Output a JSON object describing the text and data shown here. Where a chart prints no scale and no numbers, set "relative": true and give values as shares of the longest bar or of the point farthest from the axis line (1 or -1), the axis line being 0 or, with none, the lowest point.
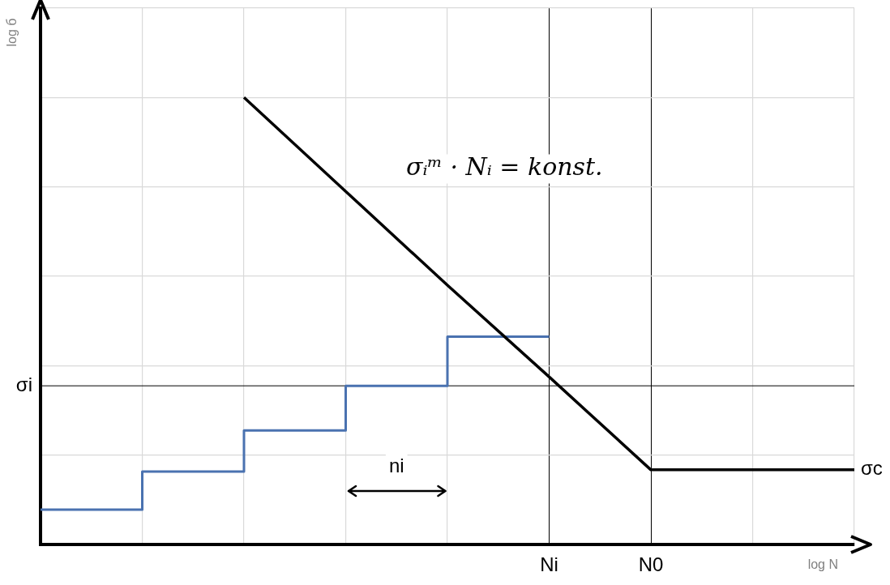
{
  "chart_data": {
    "type": "line",
    "xlabel": "log N",
    "ylabel": "log б",
    "relative": true,
    "categories": [
      null,
      null,
      null,
      null,
      null,
      "Ni",
      "N0",
      null,
      null
    ],
    "grid": true,
    "legend": false,
    "marker": "none",
    "series": [
      {
        "name": "σc",
        "color": "#000000",
        "values": [
          null,
          null,
          1,
          0.79,
          0.58,
          0.375,
          0.167,
          0.167,
          0.167
        ]
      },
      {
        "type": "step",
        "color": "#4a72b0",
        "values": [
          0.078,
          0.163,
          0.255,
          0.355,
          0.465,
          0.465,
          null,
          null,
          null
        ]
      }
    ],
    "ref_lines": [
      {
        "axis": "y",
        "value": 0.355,
        "label": "σi",
        "color": "#000000"
      }
    ],
    "annotations": [
      "σᵢᵐ · Nᵢ = konst.",
      "ni"
    ]
  }
}
